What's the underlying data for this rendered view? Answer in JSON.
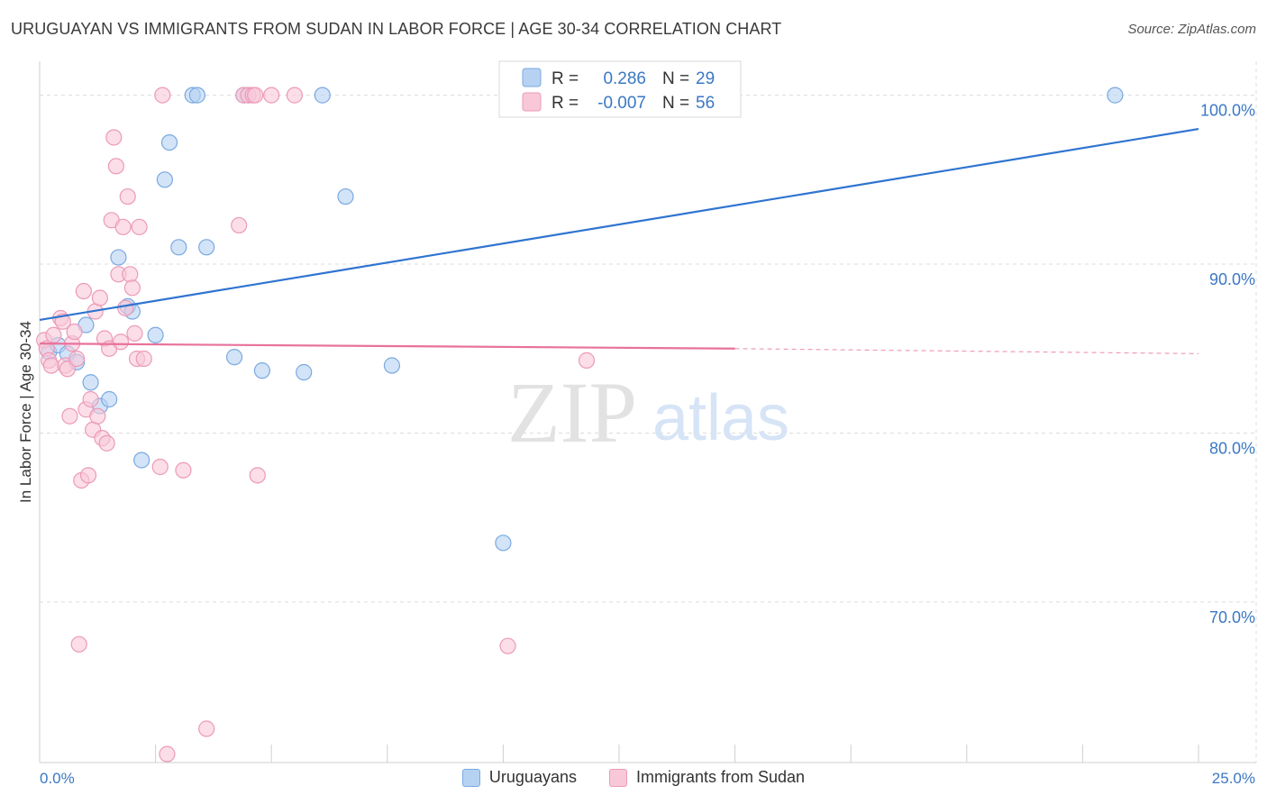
{
  "title": "URUGUAYAN VS IMMIGRANTS FROM SUDAN IN LABOR FORCE | AGE 30-34 CORRELATION CHART",
  "source": "Source: ZipAtlas.com",
  "watermark": {
    "zip": "ZIP",
    "atlas": "atlas"
  },
  "colors": {
    "blue_fill": "#b6d2f3",
    "blue_stroke": "#7aa9e0",
    "blue_line": "#2f74d0",
    "pink_fill": "#f8c8d8",
    "pink_stroke": "#ec9ab6",
    "pink_line": "#e8729b",
    "axis_label": "#3b78c4",
    "grid": "#dcdcdc"
  },
  "chart_data": {
    "type": "scatter",
    "xlabel": "",
    "ylabel": "In Labor Force | Age 30-34",
    "xlim": [
      0,
      25
    ],
    "ylim": [
      60.5,
      103.5
    ],
    "x_tick_labels": [
      "0.0%",
      "25.0%"
    ],
    "y_ticks": [
      70,
      80,
      90,
      100
    ],
    "y_tick_labels": [
      "70.0%",
      "80.0%",
      "90.0%",
      "100.0%"
    ],
    "legend": [
      {
        "r_label": "R =",
        "r_value": "0.286",
        "n_label": "N =",
        "n_value": "29"
      },
      {
        "r_label": "R =",
        "r_value": "-0.007",
        "n_label": "N =",
        "n_value": "56"
      }
    ],
    "series": [
      {
        "name": "Uruguayans",
        "trend": {
          "x": [
            0,
            25
          ],
          "y": [
            86.7,
            98.0
          ]
        },
        "points": [
          [
            0.2,
            84.8
          ],
          [
            0.4,
            85.2
          ],
          [
            0.6,
            84.7
          ],
          [
            0.8,
            84.2
          ],
          [
            1.0,
            86.4
          ],
          [
            1.1,
            83.0
          ],
          [
            1.3,
            81.6
          ],
          [
            1.5,
            82.0
          ],
          [
            1.7,
            90.4
          ],
          [
            1.9,
            87.5
          ],
          [
            2.0,
            87.2
          ],
          [
            2.5,
            85.8
          ],
          [
            2.2,
            78.4
          ],
          [
            2.7,
            95.0
          ],
          [
            2.8,
            97.2
          ],
          [
            3.0,
            91.0
          ],
          [
            3.3,
            100.0
          ],
          [
            3.4,
            100.0
          ],
          [
            3.6,
            91.0
          ],
          [
            4.2,
            84.5
          ],
          [
            4.4,
            100.0
          ],
          [
            4.5,
            100.0
          ],
          [
            4.8,
            83.7
          ],
          [
            5.7,
            83.6
          ],
          [
            6.1,
            100.0
          ],
          [
            6.6,
            94.0
          ],
          [
            7.6,
            84.0
          ],
          [
            10.0,
            73.5
          ],
          [
            23.2,
            100.0
          ]
        ]
      },
      {
        "name": "Immigrants from Sudan",
        "trend": {
          "x": [
            0,
            15
          ],
          "y": [
            85.3,
            85.0
          ],
          "dashed_to": {
            "x": 25,
            "y": 84.7
          }
        },
        "points": [
          [
            0.1,
            85.5
          ],
          [
            0.15,
            85.0
          ],
          [
            0.2,
            84.3
          ],
          [
            0.25,
            84.0
          ],
          [
            0.3,
            85.8
          ],
          [
            0.45,
            86.8
          ],
          [
            0.5,
            86.6
          ],
          [
            0.55,
            84.0
          ],
          [
            0.6,
            83.8
          ],
          [
            0.65,
            81.0
          ],
          [
            0.7,
            85.3
          ],
          [
            0.75,
            86.0
          ],
          [
            0.8,
            84.4
          ],
          [
            0.85,
            67.5
          ],
          [
            0.9,
            77.2
          ],
          [
            0.95,
            88.4
          ],
          [
            1.0,
            81.4
          ],
          [
            1.05,
            77.5
          ],
          [
            1.1,
            82.0
          ],
          [
            1.15,
            80.2
          ],
          [
            1.2,
            87.2
          ],
          [
            1.25,
            81.0
          ],
          [
            1.3,
            88.0
          ],
          [
            1.35,
            79.7
          ],
          [
            1.4,
            85.6
          ],
          [
            1.45,
            79.4
          ],
          [
            1.5,
            85.0
          ],
          [
            1.55,
            92.6
          ],
          [
            1.6,
            97.5
          ],
          [
            1.65,
            95.8
          ],
          [
            1.7,
            89.4
          ],
          [
            1.75,
            85.4
          ],
          [
            1.8,
            92.2
          ],
          [
            1.85,
            87.4
          ],
          [
            1.9,
            94.0
          ],
          [
            1.95,
            89.4
          ],
          [
            2.0,
            88.6
          ],
          [
            2.05,
            85.9
          ],
          [
            2.1,
            84.4
          ],
          [
            2.15,
            92.2
          ],
          [
            2.25,
            84.4
          ],
          [
            2.6,
            78.0
          ],
          [
            2.65,
            100.0
          ],
          [
            2.75,
            61.0
          ],
          [
            3.1,
            77.8
          ],
          [
            3.6,
            62.5
          ],
          [
            4.3,
            92.3
          ],
          [
            4.4,
            100.0
          ],
          [
            4.5,
            100.0
          ],
          [
            4.6,
            100.0
          ],
          [
            4.65,
            100.0
          ],
          [
            4.7,
            77.5
          ],
          [
            5.0,
            100.0
          ],
          [
            5.5,
            100.0
          ],
          [
            10.1,
            67.4
          ],
          [
            11.8,
            84.3
          ]
        ]
      }
    ]
  }
}
